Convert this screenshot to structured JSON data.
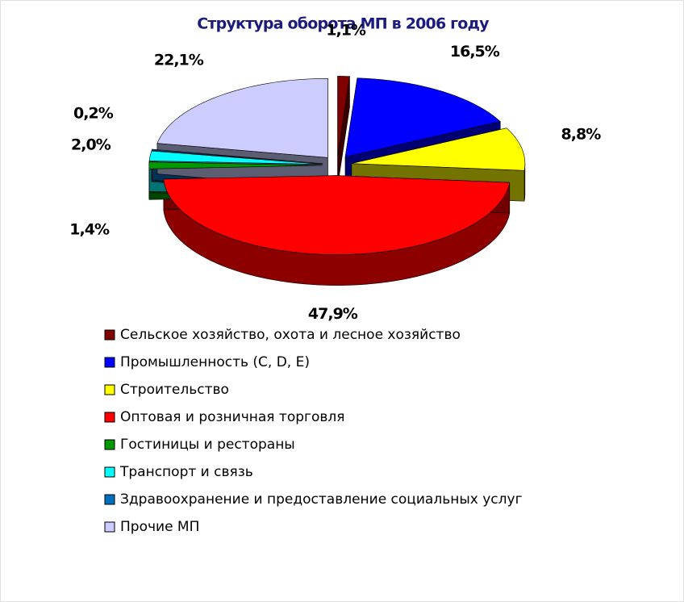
{
  "chart_data": {
    "type": "pie3d",
    "title": "Структура оборота МП в 2006 году",
    "categories": [
      "Сельское хозяйство, охота и лесное хозяйство",
      "Промышленность (C, D, E)",
      "Строительство",
      "Оптовая и розничная торговля",
      "Гостиницы и рестораны",
      "Транспорт и связь",
      "Здравоохранение и предоставление социальных услуг",
      "Прочие МП"
    ],
    "values": [
      1.1,
      16.5,
      8.8,
      47.9,
      1.4,
      2.0,
      0.2,
      22.1
    ],
    "value_labels": [
      "1,1%",
      "16,5%",
      "8,8%",
      "47,9%",
      "1,4%",
      "2,0%",
      "0,2%",
      "22,1%"
    ],
    "colors": [
      "#800000",
      "#0000ff",
      "#ffff00",
      "#ff0000",
      "#009900",
      "#00ffff",
      "#0070c0",
      "#ccccff"
    ],
    "legend": "bottom"
  }
}
